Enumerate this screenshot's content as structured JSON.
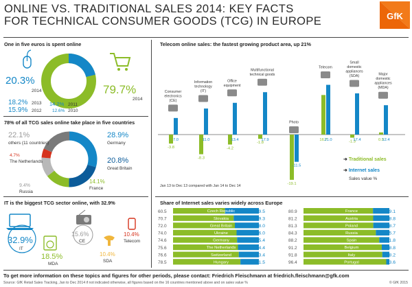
{
  "header": {
    "title_line1": "ONLINE VS. TRADITIONAL SALES 2014: KEY FACTS",
    "title_line2": "FOR TECHNICAL CONSUMER GOODS (TCG) IN EUROPE",
    "logo_text": "GfK"
  },
  "colors": {
    "green": "#8cbc28",
    "blue": "#1487c7",
    "grey": "#9a9a9a",
    "red": "#d6331d",
    "dark": "#555555"
  },
  "section1": {
    "title": "One in five euros is spent online",
    "online_2014": "20.3%",
    "online_2014_year": "2014",
    "online_2013": "18.2%",
    "online_2013_year": "2013",
    "online_2012": "15.9%",
    "online_2012_year": "2012",
    "online_2011": "14.2%",
    "online_2011_year": "2011",
    "online_2010": "12.6%",
    "online_2010_year": "2010",
    "offline_2014": "79.7%",
    "offline_2014_year": "2014",
    "mouse_icon": "mouse-icon",
    "cart_icon": "shopping-cart-icon"
  },
  "section2": {
    "title": "78% of all TCG sales online take place in five countries",
    "others_pct": "22.1%",
    "others_label": "others (11 countries)",
    "nl_pct": "4.7%",
    "nl_label": "The Netherlands",
    "ru_pct": "9.4%",
    "ru_label": "Russia",
    "de_pct": "28.9%",
    "de_label": "Germany",
    "gb_pct": "20.8%",
    "gb_label": "Great Britain",
    "fr_pct": "14.1%",
    "fr_label": "France"
  },
  "section3": {
    "title": "IT is the biggest TCG sector online, with 32.9%",
    "it_pct": "32.9%",
    "it_label": "IT",
    "ce_pct": "15.6%",
    "ce_label": "CE",
    "tel_pct": "10.4%",
    "tel_label": "Telecom",
    "mda_pct": "18.5%",
    "mda_label": "MDA",
    "sda_pct": "10.4%",
    "sda_label": "SDA"
  },
  "chart_data": [
    {
      "type": "pie",
      "title": "One in five euros is spent online",
      "categories": [
        "online",
        "traditional"
      ],
      "values": [
        20.3,
        79.7
      ]
    },
    {
      "type": "pie",
      "title": "78% of all TCG sales online take place in five countries",
      "categories": [
        "Germany",
        "Great Britain",
        "France",
        "Russia",
        "The Netherlands",
        "others (11 countries)"
      ],
      "values": [
        28.9,
        20.8,
        14.1,
        9.4,
        4.7,
        22.1
      ]
    },
    {
      "type": "bar",
      "title": "Telecom online sales: the fastest growing product area, up 21%",
      "categories": [
        "Consumer electronics (CE)",
        "Information technology (IT)",
        "Office equipment",
        "Multifunctional technical goods",
        "Photo",
        "Telecom",
        "Small domestic appliances (SDA)",
        "Major domestic appliances (MDA)"
      ],
      "series": [
        {
          "name": "Traditional sales",
          "values": [
            -3.8,
            -8.3,
            -4.2,
            -1.8,
            -19.1,
            16.7,
            -1.3,
            0.9
          ]
        },
        {
          "name": "Internet sales",
          "values": [
            7.0,
            11.0,
            13.4,
            17.9,
            -11.5,
            21.0,
            17.4,
            12.4
          ]
        }
      ],
      "note": "Jan 13 to Dec 13 compared with Jan 14 to Dec 14",
      "ylabel": "Sales value %"
    },
    {
      "type": "bar",
      "title": "Share of Internet sales varies widely across Europe",
      "categories": [
        "Czech Republic",
        "Slovakia",
        "Great Britain",
        "Ukraine",
        "Germany",
        "The Netherlands",
        "Switzerland",
        "Hungary",
        "France",
        "Austria",
        "Poland",
        "Russia",
        "Spain",
        "Belgium",
        "Italy",
        "Portugal"
      ],
      "series": [
        {
          "name": "Traditional",
          "values": [
            60.5,
            70.7,
            72.0,
            74.0,
            74.6,
            75.6,
            76.6,
            78.5,
            80.9,
            81.2,
            81.3,
            84.3,
            88.2,
            91.2,
            91.8,
            96.4
          ]
        },
        {
          "name": "Internet",
          "values": [
            39.5,
            29.3,
            28.0,
            26.0,
            25.4,
            24.4,
            23.4,
            21.5,
            19.1,
            18.8,
            18.7,
            15.7,
            11.8,
            8.8,
            8.2,
            3.6
          ]
        }
      ]
    }
  ],
  "section4_title": "Telecom online sales: the fastest growing product area, up 21%",
  "section4_note": "Jan 13 to Dec 13 compared with Jan 14 to Dec 14",
  "legend": {
    "traditional": "Traditional sales",
    "internet": "Internet sales",
    "unit": "Sales value %"
  },
  "section5_title": "Share of Internet sales varies widely across Europe",
  "footer": {
    "line1": "To get more information on these topics and figures for other periods, please contact: Friedrich Fleischmann at friedrich.fleischmann@gfk.com",
    "line2": "Source: GfK Retail Sales Tracking, Jan to Dec 2014 if not indicated otherwise, all figures based on the 16 countries mentioned above and on sales value %",
    "copyright": "© GfK 2015"
  }
}
